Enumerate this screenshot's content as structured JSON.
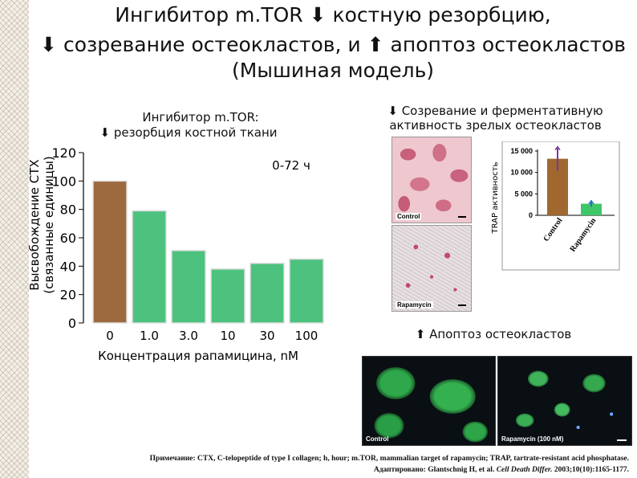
{
  "title": {
    "line1_a": "Ингибитор m.TOR",
    "line1_arrow": "⬇",
    "line1_b": "костную резорбцию,",
    "line2_arrow1": "⬇",
    "line2_a": "созревание остеокластов, и",
    "line2_arrow2": "⬆",
    "line2_b": "апоптоз остеокластов",
    "line3": "(Мышиная модель)"
  },
  "left_panel": {
    "heading1": "Ингибитор m.TOR:",
    "heading2_arrow": "⬇",
    "heading2": "резорбция костной ткани"
  },
  "right_panel": {
    "heading1_arrow": "⬇",
    "heading1": "Созревание и ферментативную",
    "heading2": "активность зрелых остеокластов",
    "photo_top_label": "Control",
    "photo_bottom_label": "Rapamycin",
    "apoptosis_arrow": "⬆",
    "apoptosis_label": "Апоптоз остеокластов",
    "fluo_left_label": "Control",
    "fluo_right_label": "Rapamycin (100 nM)"
  },
  "footnote": {
    "line1": "Примечание: CTX, C-telopeptide of type I collagen; h, hour; m.TOR, mammalian target of rapamycin; TRAP, tartrate-resistant acid phosphatase.",
    "line2_a": "Адаптировано: Glantschnig H, et al.",
    "line2_journal": "Cell Death Differ.",
    "line2_b": "2003;10(10):1165-1177."
  },
  "colors": {
    "brown_bar": "#9c6a3e",
    "green_bar": "#4cc27e",
    "trap_brown": "#a0672f",
    "trap_green": "#3ec768",
    "error_purple": "#7a3a9a",
    "error_blue": "#2a6fc0"
  },
  "chart_data": [
    {
      "type": "bar",
      "categories": [
        "0",
        "1.0",
        "3.0",
        "10",
        "30",
        "100"
      ],
      "values": [
        100,
        79,
        51,
        38,
        42,
        45
      ],
      "annotation": "0-72 ч",
      "xlabel": "Концентрация рапамицина, nМ",
      "ylabel_line1": "Высвобождение СТХ",
      "ylabel_line2": "(связанные единицы)",
      "yticks": [
        "0",
        "20",
        "40",
        "60",
        "80",
        "100",
        "120"
      ],
      "ylim": [
        0,
        120
      ],
      "grid": false
    },
    {
      "type": "bar",
      "categories": [
        "Control",
        "Rapamycin"
      ],
      "values": [
        13200,
        2700
      ],
      "error": [
        2800,
        700
      ],
      "ylabel": "TRAP активность",
      "yticks": [
        "0",
        "5 000",
        "10 000",
        "15 000"
      ],
      "ylim": [
        0,
        15000
      ],
      "grid": false
    }
  ]
}
